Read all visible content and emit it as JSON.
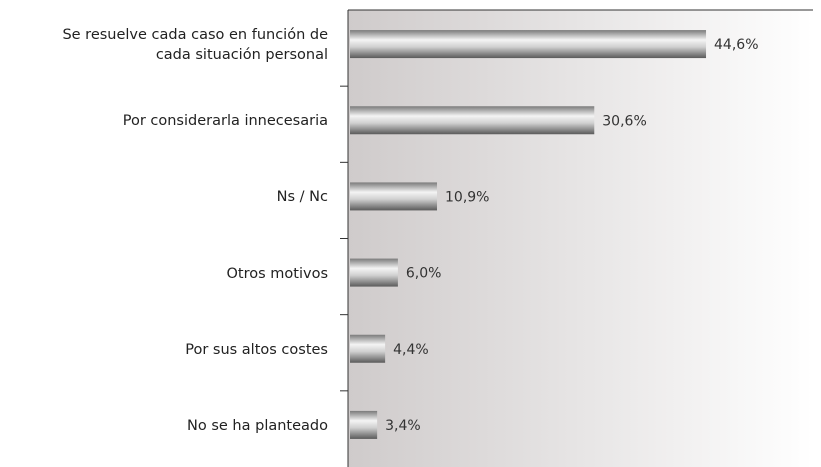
{
  "chart_data": {
    "type": "barh",
    "categories": [
      "Se resuelve cada caso en función de\ncada situación personal",
      "Por considerarla innecesaria",
      "Ns / Nc",
      "Otros motivos",
      "Por sus altos costes",
      "No se ha planteado"
    ],
    "values": [
      44.6,
      30.6,
      10.9,
      6.0,
      4.4,
      3.4
    ],
    "value_labels": [
      "44,6%",
      "30,6%",
      "10,9%",
      "6,0%",
      "4,4%",
      "3,4%"
    ],
    "xlim": [
      0,
      58
    ]
  }
}
